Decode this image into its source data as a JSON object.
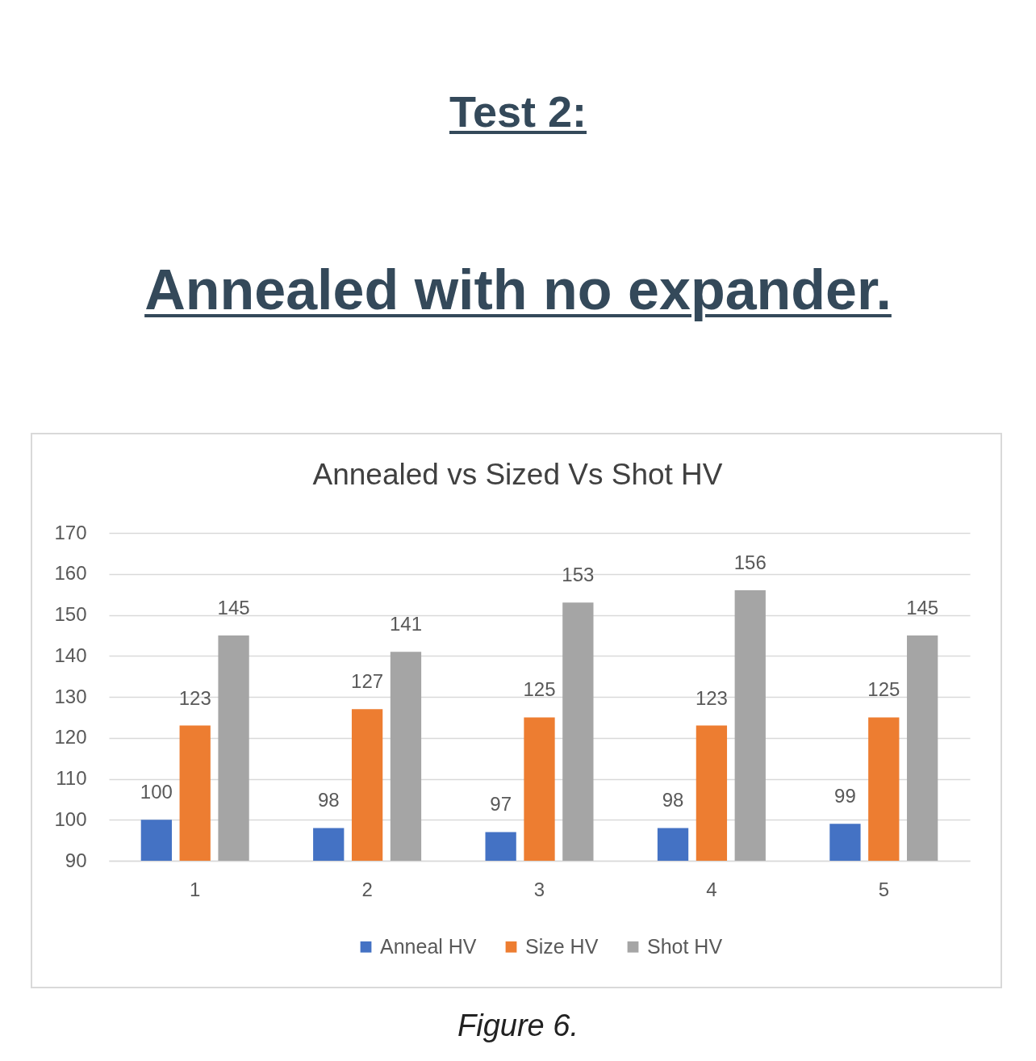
{
  "chart_data": {
    "type": "bar",
    "title": "Annealed vs Sized Vs Shot HV",
    "categories": [
      "1",
      "2",
      "3",
      "4",
      "5"
    ],
    "series": [
      {
        "name": "Anneal HV",
        "color": "#4472c4",
        "values": [
          100,
          98,
          97,
          98,
          99
        ]
      },
      {
        "name": "Size HV",
        "color": "#ed7d31",
        "values": [
          123,
          127,
          125,
          123,
          125
        ]
      },
      {
        "name": "Shot HV",
        "color": "#a5a5a5",
        "values": [
          145,
          141,
          153,
          156,
          145
        ]
      }
    ],
    "ylim": [
      90,
      170
    ],
    "yticks": [
      90,
      100,
      110,
      120,
      130,
      140,
      150,
      160,
      170
    ],
    "grid": "y",
    "legend": "bottom",
    "data_labels": true,
    "annotations": [
      "Test 2:",
      "Annealed with no expander.",
      "Figure 6."
    ]
  }
}
